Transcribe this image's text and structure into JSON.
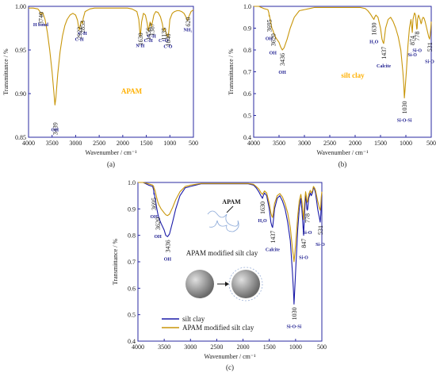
{
  "colors": {
    "apam": "#c8960a",
    "silt": "#1a1aa8",
    "inset_text": "#ffb000"
  },
  "chart_data": [
    {
      "type": "line",
      "panel": "(a)",
      "xlabel": "Wavenumber / cm⁻¹",
      "ylabel": "Transmittance / %",
      "xlim": [
        4000,
        500
      ],
      "ylim": [
        0.85,
        1.0
      ],
      "xticks": [
        4000,
        3500,
        3000,
        2500,
        2000,
        1500,
        1000,
        500
      ],
      "yticks": [
        0.85,
        0.9,
        0.95,
        1.0
      ],
      "ytick_labels": [
        "0.85",
        "0.90",
        "0.95",
        "1.00"
      ],
      "inset_text": "APAM",
      "series": [
        {
          "color_key": "apam",
          "x": [
            4000,
            3900,
            3800,
            3760,
            3740,
            3720,
            3700,
            3650,
            3600,
            3550,
            3500,
            3460,
            3439,
            3420,
            3380,
            3330,
            3280,
            3230,
            3180,
            3120,
            3060,
            3000,
            2960,
            2940,
            2922,
            2900,
            2880,
            2865,
            2853,
            2840,
            2800,
            2700,
            2600,
            2400,
            2200,
            2000,
            1900,
            1800,
            1700,
            1660,
            1645,
            1630,
            1615,
            1600,
            1560,
            1520,
            1480,
            1465,
            1456,
            1445,
            1420,
            1400,
            1387,
            1370,
            1340,
            1300,
            1250,
            1200,
            1160,
            1135,
            1110,
            1080,
            1055,
            1040,
            1025,
            1000,
            950,
            900,
            850,
            800,
            750,
            700,
            660,
            640,
            620,
            600,
            550,
            500
          ],
          "y": [
            0.998,
            0.998,
            0.997,
            0.994,
            0.99,
            0.992,
            0.993,
            0.985,
            0.97,
            0.95,
            0.925,
            0.9,
            0.887,
            0.895,
            0.922,
            0.948,
            0.966,
            0.978,
            0.985,
            0.99,
            0.992,
            0.99,
            0.984,
            0.977,
            0.973,
            0.979,
            0.983,
            0.982,
            0.98,
            0.986,
            0.994,
            0.997,
            0.998,
            0.998,
            0.998,
            0.998,
            0.998,
            0.997,
            0.994,
            0.985,
            0.975,
            0.966,
            0.972,
            0.982,
            0.992,
            0.99,
            0.98,
            0.973,
            0.972,
            0.975,
            0.982,
            0.98,
            0.977,
            0.982,
            0.99,
            0.994,
            0.993,
            0.988,
            0.98,
            0.972,
            0.975,
            0.97,
            0.966,
            0.965,
            0.97,
            0.985,
            0.992,
            0.994,
            0.995,
            0.995,
            0.994,
            0.992,
            0.988,
            0.985,
            0.984,
            0.988,
            0.994,
            0.996
          ]
        }
      ],
      "annotations": [
        {
          "x": 3740,
          "num": "3740",
          "group": "H bond"
        },
        {
          "x": 2922,
          "num": "2922",
          "group": "C-H"
        },
        {
          "x": 2853,
          "num": "2853",
          "group": "C-H"
        },
        {
          "x": 1630,
          "num": "1630",
          "group": "N-H"
        },
        {
          "x": 1456,
          "num": "1456",
          "group": "C-H"
        },
        {
          "x": 1387,
          "num": "1387",
          "group": "C-H"
        },
        {
          "x": 1135,
          "num": "1135",
          "group": "C=O"
        },
        {
          "x": 1040,
          "num": "1040",
          "group": "C-O"
        },
        {
          "x": 620,
          "num": "620",
          "group": "NH₂"
        },
        {
          "x": 3439,
          "num": "3439",
          "group": "OH"
        }
      ]
    },
    {
      "type": "line",
      "panel": "(b)",
      "xlabel": "Wavenumber / cm⁻¹",
      "ylabel": "Transmittance / %",
      "xlim": [
        4000,
        500
      ],
      "ylim": [
        0.4,
        1.0
      ],
      "xticks": [
        4000,
        3500,
        3000,
        2500,
        2000,
        1500,
        1000,
        500
      ],
      "yticks": [
        0.4,
        0.5,
        0.6,
        0.7,
        0.8,
        0.9,
        1.0
      ],
      "ytick_labels": [
        "0.4",
        "0.5",
        "0.6",
        "0.7",
        "0.8",
        "0.9",
        "1.0"
      ],
      "inset_text": "silt clay",
      "series": [
        {
          "color_key": "apam",
          "x": [
            4000,
            3900,
            3800,
            3720,
            3700,
            3695,
            3690,
            3670,
            3640,
            3620,
            3600,
            3560,
            3500,
            3470,
            3436,
            3400,
            3340,
            3280,
            3200,
            3100,
            3000,
            2900,
            2800,
            2600,
            2400,
            2200,
            2000,
            1900,
            1800,
            1750,
            1700,
            1660,
            1645,
            1630,
            1615,
            1590,
            1550,
            1500,
            1470,
            1450,
            1437,
            1420,
            1400,
            1350,
            1300,
            1250,
            1200,
            1150,
            1100,
            1060,
            1040,
            1030,
            1015,
            990,
            960,
            930,
            900,
            890,
            874,
            860,
            830,
            810,
            795,
            785,
            778,
            770,
            750,
            720,
            700,
            690,
            680,
            660,
            640,
            620,
            600,
            580,
            560,
            550,
            540,
            531,
            520,
            510,
            500
          ],
          "y": [
            1.0,
            1.0,
            0.99,
            0.985,
            0.97,
            0.955,
            0.96,
            0.935,
            0.9,
            0.89,
            0.875,
            0.855,
            0.835,
            0.815,
            0.8,
            0.81,
            0.85,
            0.9,
            0.95,
            0.98,
            0.985,
            0.99,
            0.995,
            0.995,
            0.995,
            0.995,
            0.995,
            0.995,
            0.99,
            0.98,
            0.965,
            0.95,
            0.945,
            0.94,
            0.95,
            0.96,
            0.95,
            0.9,
            0.85,
            0.835,
            0.83,
            0.86,
            0.9,
            0.94,
            0.95,
            0.93,
            0.9,
            0.86,
            0.8,
            0.7,
            0.64,
            0.58,
            0.62,
            0.7,
            0.82,
            0.9,
            0.94,
            0.92,
            0.88,
            0.94,
            0.97,
            0.96,
            0.92,
            0.895,
            0.9,
            0.94,
            0.96,
            0.94,
            0.92,
            0.925,
            0.94,
            0.95,
            0.945,
            0.93,
            0.91,
            0.89,
            0.87,
            0.86,
            0.855,
            0.85,
            0.87,
            0.9,
            0.93
          ]
        }
      ],
      "annotations": [
        {
          "x": 3695,
          "num": "3695",
          "group": "OH"
        },
        {
          "x": 3620,
          "num": "3620",
          "group": "OH"
        },
        {
          "x": 3436,
          "num": "3436",
          "group": "OH"
        },
        {
          "x": 1630,
          "num": "1630",
          "group": "H₂O"
        },
        {
          "x": 1437,
          "num": "1437",
          "group": "Calcite"
        },
        {
          "x": 1030,
          "num": "1030",
          "group": "Si-O-Si"
        },
        {
          "x": 874,
          "num": "874",
          "group": "Si-O"
        },
        {
          "x": 778,
          "num": "778",
          "group": "Si-O"
        },
        {
          "x": 531,
          "num": "531",
          "group": "Si-O"
        }
      ]
    },
    {
      "type": "line",
      "panel": "(c)",
      "xlabel": "Wavenumber / cm⁻¹",
      "ylabel": "Transmittance / %",
      "xlim": [
        4000,
        500
      ],
      "ylim": [
        0.4,
        1.0
      ],
      "xticks": [
        4000,
        3500,
        3000,
        2500,
        2000,
        1500,
        1000,
        500
      ],
      "yticks": [
        0.4,
        0.5,
        0.6,
        0.7,
        0.8,
        0.9,
        1.0
      ],
      "ytick_labels": [
        "0.4",
        "0.5",
        "0.6",
        "0.7",
        "0.8",
        "0.9",
        "1.0"
      ],
      "inset_title": "APAM modified silt clay",
      "inset_label": "APAM",
      "legend": [
        "silt clay",
        "APAM modified silt clay"
      ],
      "series": [
        {
          "name": "silt clay",
          "color_key": "silt",
          "x": [
            4000,
            3900,
            3800,
            3720,
            3700,
            3695,
            3690,
            3670,
            3640,
            3620,
            3600,
            3560,
            3500,
            3470,
            3436,
            3400,
            3340,
            3280,
            3200,
            3100,
            3000,
            2900,
            2800,
            2600,
            2400,
            2200,
            2000,
            1900,
            1800,
            1750,
            1700,
            1660,
            1645,
            1630,
            1615,
            1590,
            1550,
            1500,
            1470,
            1450,
            1437,
            1420,
            1400,
            1350,
            1300,
            1250,
            1200,
            1150,
            1100,
            1060,
            1040,
            1030,
            1015,
            990,
            960,
            930,
            900,
            880,
            847,
            830,
            810,
            795,
            785,
            778,
            770,
            750,
            720,
            700,
            680,
            660,
            640,
            620,
            600,
            580,
            560,
            550,
            540,
            531,
            520,
            510,
            500
          ],
          "y": [
            1.0,
            1.0,
            0.99,
            0.985,
            0.97,
            0.955,
            0.96,
            0.935,
            0.9,
            0.88,
            0.865,
            0.845,
            0.82,
            0.8,
            0.795,
            0.805,
            0.85,
            0.9,
            0.95,
            0.98,
            0.985,
            0.99,
            0.995,
            0.995,
            0.995,
            0.995,
            0.995,
            0.995,
            0.99,
            0.98,
            0.965,
            0.95,
            0.945,
            0.94,
            0.95,
            0.96,
            0.95,
            0.9,
            0.85,
            0.835,
            0.83,
            0.86,
            0.9,
            0.94,
            0.95,
            0.93,
            0.9,
            0.85,
            0.78,
            0.66,
            0.59,
            0.54,
            0.6,
            0.7,
            0.82,
            0.9,
            0.94,
            0.9,
            0.8,
            0.88,
            0.95,
            0.93,
            0.9,
            0.895,
            0.9,
            0.94,
            0.96,
            0.95,
            0.96,
            0.98,
            0.975,
            0.96,
            0.93,
            0.9,
            0.88,
            0.87,
            0.86,
            0.85,
            0.88,
            0.92,
            0.95
          ]
        },
        {
          "name": "APAM modified silt clay",
          "color_key": "apam",
          "x": [
            4000,
            3900,
            3800,
            3720,
            3700,
            3695,
            3690,
            3670,
            3640,
            3620,
            3600,
            3560,
            3500,
            3470,
            3436,
            3400,
            3340,
            3280,
            3200,
            3100,
            3000,
            2900,
            2800,
            2600,
            2400,
            2200,
            2000,
            1900,
            1800,
            1750,
            1700,
            1660,
            1645,
            1630,
            1615,
            1590,
            1550,
            1500,
            1470,
            1450,
            1437,
            1420,
            1400,
            1350,
            1300,
            1250,
            1200,
            1150,
            1100,
            1060,
            1040,
            1030,
            1015,
            990,
            960,
            930,
            900,
            880,
            847,
            830,
            810,
            795,
            785,
            778,
            770,
            750,
            720,
            700,
            680,
            660,
            640,
            620,
            600,
            580,
            560,
            550,
            540,
            531,
            520,
            510,
            500
          ],
          "y": [
            1.0,
            1.0,
            0.995,
            0.99,
            0.985,
            0.975,
            0.978,
            0.965,
            0.94,
            0.925,
            0.915,
            0.9,
            0.885,
            0.878,
            0.875,
            0.88,
            0.905,
            0.935,
            0.965,
            0.985,
            0.99,
            0.993,
            0.996,
            0.996,
            0.996,
            0.996,
            0.996,
            0.996,
            0.993,
            0.985,
            0.975,
            0.962,
            0.958,
            0.955,
            0.96,
            0.968,
            0.96,
            0.92,
            0.885,
            0.872,
            0.868,
            0.89,
            0.92,
            0.95,
            0.958,
            0.945,
            0.92,
            0.885,
            0.83,
            0.75,
            0.72,
            0.7,
            0.73,
            0.79,
            0.87,
            0.93,
            0.955,
            0.93,
            0.86,
            0.92,
            0.965,
            0.95,
            0.93,
            0.925,
            0.93,
            0.955,
            0.97,
            0.96,
            0.968,
            0.985,
            0.98,
            0.97,
            0.95,
            0.93,
            0.915,
            0.905,
            0.9,
            0.895,
            0.915,
            0.945,
            0.965
          ]
        }
      ],
      "annotations": [
        {
          "x": 3695,
          "num": "3695",
          "group": "OH"
        },
        {
          "x": 3620,
          "num": "3620",
          "group": "OH"
        },
        {
          "x": 3436,
          "num": "3436",
          "group": "OH"
        },
        {
          "x": 1630,
          "num": "1630",
          "group": "H₂O"
        },
        {
          "x": 1437,
          "num": "1437",
          "group": "Calcite"
        },
        {
          "x": 1030,
          "num": "1030",
          "group": "Si-O-Si"
        },
        {
          "x": 847,
          "num": "847",
          "group": "Si-O"
        },
        {
          "x": 778,
          "num": "778",
          "group": "Si-O"
        },
        {
          "x": 531,
          "num": "531",
          "group": "Si-O"
        }
      ]
    }
  ]
}
